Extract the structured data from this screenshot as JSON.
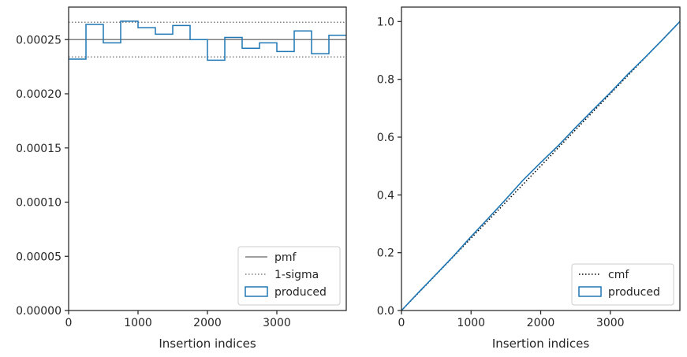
{
  "chart_data": [
    {
      "type": "line",
      "xlabel": "Insertion indices",
      "ylabel": "",
      "xlim": [
        0,
        4000
      ],
      "ylim": [
        0,
        0.00028
      ],
      "xticks": [
        0,
        1000,
        2000,
        3000
      ],
      "xtick_labels": [
        "0",
        "1000",
        "2000",
        "3000"
      ],
      "yticks": [
        0,
        5e-05,
        0.0001,
        0.00015,
        0.0002,
        0.00025
      ],
      "ytick_labels": [
        "0.00000",
        "0.00005",
        "0.00010",
        "0.00015",
        "0.00020",
        "0.00025"
      ],
      "grid": false,
      "legend_position": "lower right",
      "pmf": 0.00025,
      "sigma_band": [
        0.000234,
        0.000266
      ],
      "bin_edges": [
        0,
        250,
        500,
        750,
        1000,
        1250,
        1500,
        1750,
        2000,
        2250,
        2500,
        2750,
        3000,
        3250,
        3500,
        3750,
        4000
      ],
      "produced": [
        0.000232,
        0.000264,
        0.000247,
        0.000267,
        0.000261,
        0.000255,
        0.000263,
        0.00025,
        0.000231,
        0.000252,
        0.000242,
        0.000247,
        0.000239,
        0.000258,
        0.000237,
        0.000254
      ],
      "legend": [
        {
          "label": "pmf",
          "style": "solid",
          "color": "#808080"
        },
        {
          "label": "1-sigma",
          "style": "dotted",
          "color": "#808080"
        },
        {
          "label": "produced",
          "style": "patch",
          "color": "#1f77b4"
        }
      ]
    },
    {
      "type": "line",
      "xlabel": "Insertion indices",
      "ylabel": "",
      "xlim": [
        0,
        4000
      ],
      "ylim": [
        0,
        1.05
      ],
      "xticks": [
        0,
        1000,
        2000,
        3000
      ],
      "xtick_labels": [
        "0",
        "1000",
        "2000",
        "3000"
      ],
      "yticks": [
        0,
        0.2,
        0.4,
        0.6,
        0.8,
        1.0
      ],
      "ytick_labels": [
        "0.0",
        "0.2",
        "0.4",
        "0.6",
        "0.8",
        "1.0"
      ],
      "grid": false,
      "legend_position": "lower right",
      "cmf": {
        "x": [
          0,
          4000
        ],
        "y": [
          0,
          1.0
        ]
      },
      "produced": {
        "x": [
          0,
          250,
          500,
          750,
          1000,
          1250,
          1500,
          1750,
          2000,
          2250,
          2500,
          2750,
          3000,
          3250,
          3500,
          3750,
          4000
        ],
        "y": [
          0,
          0.064,
          0.126,
          0.189,
          0.256,
          0.32,
          0.385,
          0.452,
          0.512,
          0.57,
          0.633,
          0.694,
          0.754,
          0.817,
          0.876,
          0.937,
          1.0
        ]
      },
      "legend": [
        {
          "label": "cmf",
          "style": "dotted",
          "color": "#000000"
        },
        {
          "label": "produced",
          "style": "patch",
          "color": "#1f77b4"
        }
      ]
    }
  ]
}
